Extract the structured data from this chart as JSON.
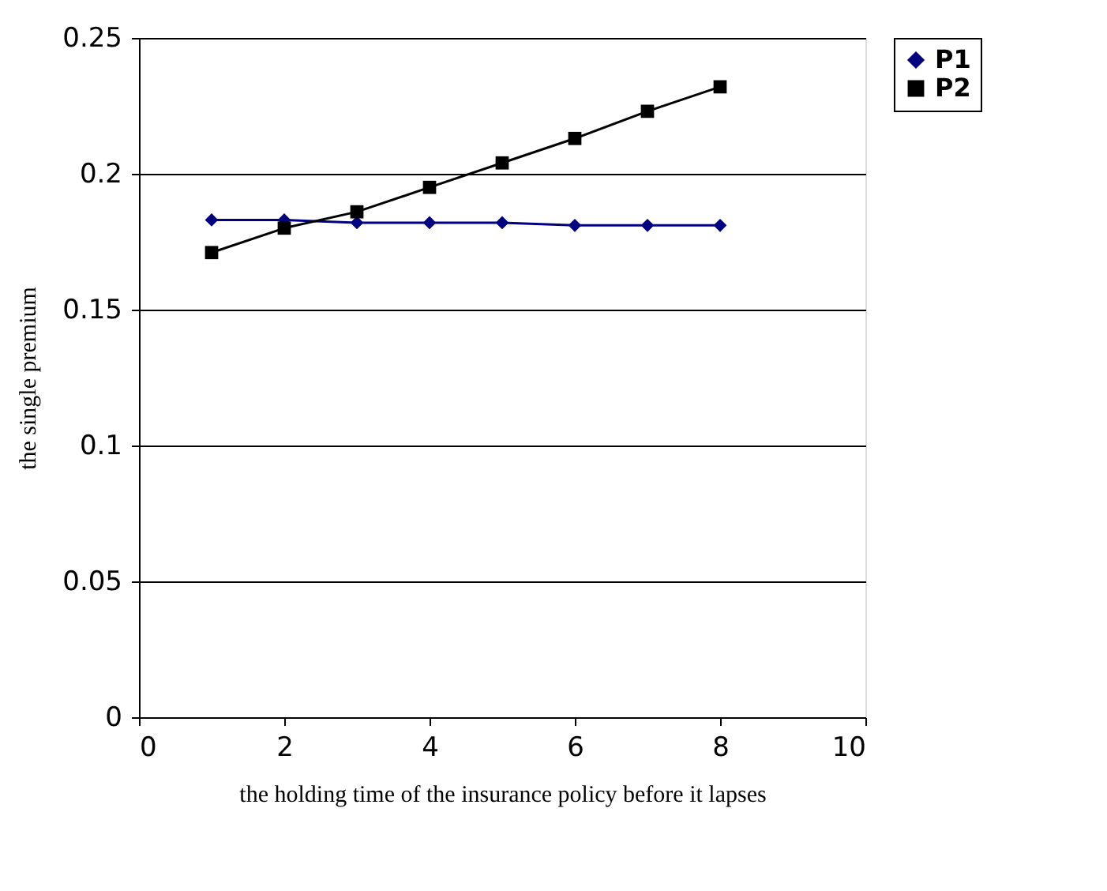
{
  "chart_data": {
    "type": "line",
    "xlabel": "the holding time of the insurance policy before it lapses",
    "ylabel": "the single premium",
    "x": [
      1,
      2,
      3,
      4,
      5,
      6,
      7,
      8
    ],
    "series": [
      {
        "name": "P1",
        "color": "#000080",
        "marker": "diamond",
        "values": [
          0.183,
          0.183,
          0.182,
          0.182,
          0.182,
          0.181,
          0.181,
          0.181
        ]
      },
      {
        "name": "P2",
        "color": "#000000",
        "marker": "square",
        "values": [
          0.171,
          0.18,
          0.186,
          0.195,
          0.204,
          0.213,
          0.223,
          0.232
        ]
      }
    ],
    "xlim": [
      0,
      10
    ],
    "xticks": [
      0,
      2,
      4,
      6,
      8,
      10
    ],
    "ylim": [
      0,
      0.25
    ],
    "yticks": [
      0,
      0.05,
      0.1,
      0.15,
      0.2,
      0.25
    ],
    "grid": "y",
    "legend": "right",
    "line_style": "solid"
  }
}
